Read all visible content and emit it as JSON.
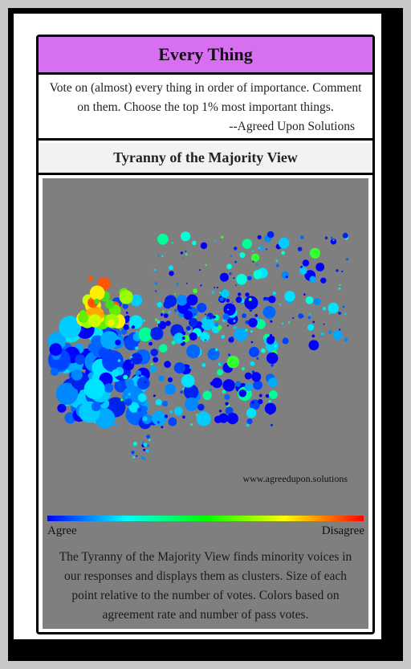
{
  "card": {
    "title": "Every Thing",
    "description": "Vote on (almost) every thing in order of importance. Comment on them. Choose the top 1% most important things.",
    "signature": "--Agreed Upon Solutions",
    "view_title": "Tyranny of the Majority View"
  },
  "visualization": {
    "credit": "www.agreedupon.solutions",
    "legend_left": "Agree",
    "legend_right": "Disagree",
    "caption": "The Tyranny of the Majority View finds minority voices in our responses and displays them as clusters. Size of each point relative to the number of votes. Colors based on agreement rate and number of pass votes.",
    "colors": {
      "background": "#7f7f7f",
      "gradient": [
        "#0000ff",
        "#00ffff",
        "#00ff00",
        "#ffff00",
        "#ff0000"
      ]
    }
  }
}
